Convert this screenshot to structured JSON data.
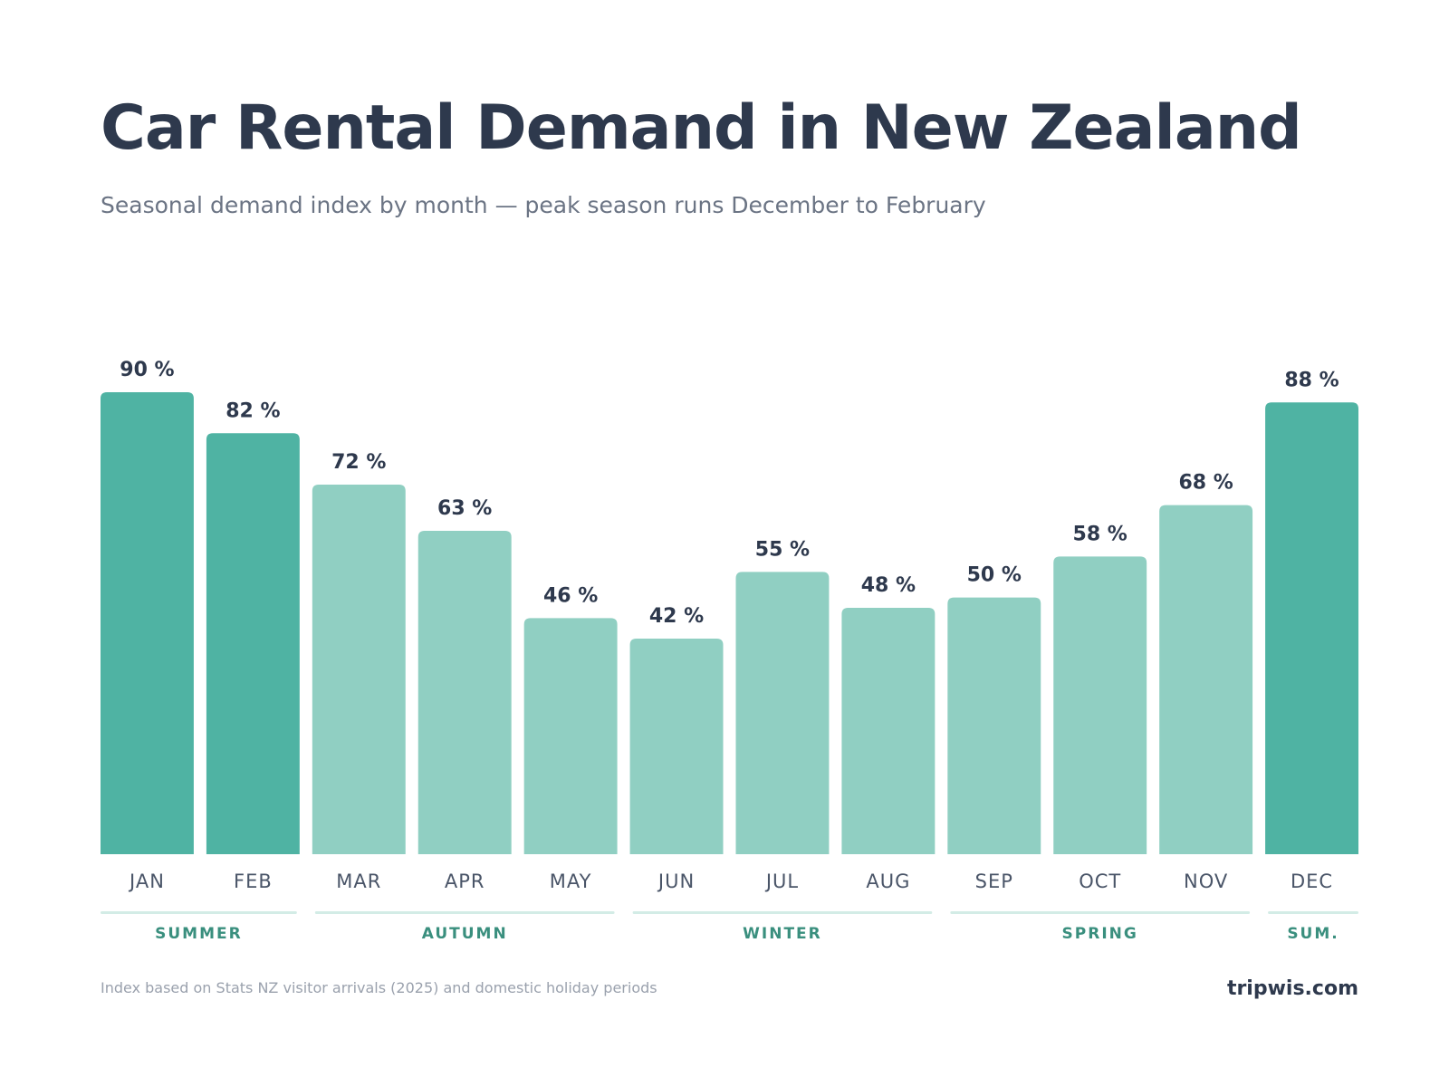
{
  "header": {
    "title": "Car Rental Demand in New Zealand",
    "subtitle": "Seasonal demand index by month — peak season runs December to February"
  },
  "chart_data": {
    "type": "bar",
    "title": "Car Rental Demand in New Zealand",
    "subtitle": "Seasonal demand index by month — peak season runs December to February",
    "categories": [
      "JAN",
      "FEB",
      "MAR",
      "APR",
      "MAY",
      "JUN",
      "JUL",
      "AUG",
      "SEP",
      "OCT",
      "NOV",
      "DEC"
    ],
    "values": [
      90,
      82,
      72,
      63,
      46,
      42,
      55,
      48,
      50,
      58,
      68,
      88
    ],
    "value_labels": [
      "90 %",
      "82 %",
      "72 %",
      "63 %",
      "46 %",
      "42 %",
      "55 %",
      "48 %",
      "50 %",
      "58 %",
      "68 %",
      "88 %"
    ],
    "unit": "%",
    "peak_months": [
      "JAN",
      "FEB",
      "DEC"
    ],
    "ylim": [
      0,
      100
    ],
    "grid": false,
    "legend": "none",
    "seasons": [
      {
        "label": "SUMMER",
        "months": [
          "JAN",
          "FEB"
        ]
      },
      {
        "label": "AUTUMN",
        "months": [
          "MAR",
          "APR",
          "MAY"
        ]
      },
      {
        "label": "WINTER",
        "months": [
          "JUN",
          "JUL",
          "AUG"
        ]
      },
      {
        "label": "SPRING",
        "months": [
          "SEP",
          "OCT",
          "NOV"
        ]
      },
      {
        "label": "SUM.",
        "months": [
          "DEC"
        ]
      }
    ],
    "colors": {
      "peak_bar": "#4fb3a3",
      "offpeak_bar": "#90cfc2",
      "value_label": "#2e394d",
      "month_label": "#4a5568",
      "season_line": "#d3ece6",
      "season_label": "#3a8f7e"
    }
  },
  "footer": {
    "note": "Index based on Stats NZ visitor arrivals (2025) and domestic holiday periods",
    "brand": "tripwis.com"
  }
}
